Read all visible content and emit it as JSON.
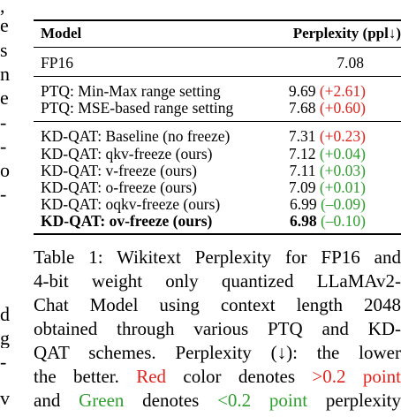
{
  "left_fragments": [
    ",",
    "e",
    "s",
    "n",
    "e",
    "-",
    "-",
    "o",
    "-",
    "d",
    "g",
    "-",
    "v"
  ],
  "table": {
    "header": {
      "model": "Model",
      "perplexity": "Perplexity (ppl↓)"
    },
    "groups": [
      [
        {
          "model": "FP16",
          "value": "7.08",
          "delta": "",
          "delta_color": ""
        }
      ],
      [
        {
          "model": "PTQ: Min-Max range setting",
          "value": "9.69",
          "delta": "(+2.61)",
          "delta_color": "red"
        },
        {
          "model": "PTQ: MSE-based range setting",
          "value": "7.68",
          "delta": "(+0.60)",
          "delta_color": "red"
        }
      ],
      [
        {
          "model": "KD-QAT: Baseline (no freeze)",
          "value": "7.31",
          "delta": "(+0.23)",
          "delta_color": "red"
        },
        {
          "model": "KD-QAT: qkv-freeze (ours)",
          "value": "7.12",
          "delta": "(+0.04)",
          "delta_color": "green"
        },
        {
          "model": "KD-QAT: v-freeze (ours)",
          "value": "7.11",
          "delta": "(+0.03)",
          "delta_color": "green"
        },
        {
          "model": "KD-QAT: o-freeze (ours)",
          "value": "7.09",
          "delta": "(+0.01)",
          "delta_color": "green"
        },
        {
          "model": "KD-QAT: oqkv-freeze (ours)",
          "value": "6.99",
          "delta": "(–0.09)",
          "delta_color": "green"
        },
        {
          "model": "KD-QAT: ov-freeze (ours)",
          "value": "6.98",
          "delta": "(–0.10)",
          "delta_color": "green",
          "bold": true
        }
      ]
    ]
  },
  "caption": {
    "lines": [
      "Table 1: Wikitext Perplexity for FP16 and",
      "4-bit weight only quantized LLaMAv2-",
      "Chat Model using context length 2048",
      "obtained through various PTQ and KD-",
      "QAT schemes.  Perplexity (↓): the lower"
    ],
    "line6": {
      "a": "the better.  ",
      "red_word": "Red",
      "b": " color denotes ",
      "red_cond": ">0.2 point"
    },
    "line7": {
      "a": "and ",
      "green_word": "Green",
      "b": " denotes ",
      "green_cond": "<0.2 point",
      "c": " perplexity"
    }
  },
  "colors": {
    "red": "#e0231c",
    "green": "#2e9e2e"
  }
}
